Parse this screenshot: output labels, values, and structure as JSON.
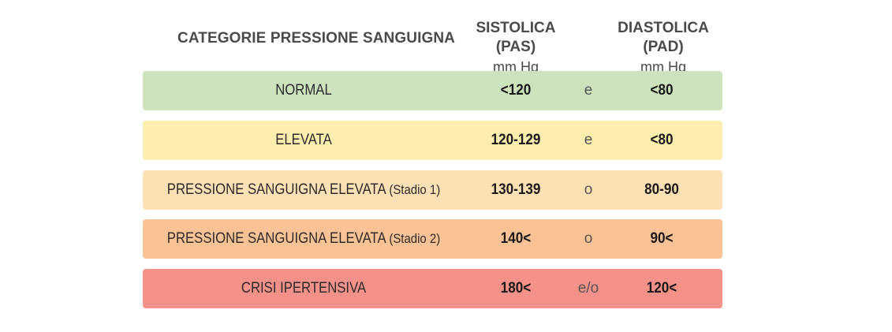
{
  "header": {
    "category": "CATEGORIE PRESSIONE SANGUIGNA",
    "systolic_title": "SISTOLICA (PAS)",
    "systolic_unit": "mm Hg",
    "diastolic_title": "DIASTOLICA (PAD)",
    "diastolic_unit": "mm Hg"
  },
  "rows": [
    {
      "category": "NORMAL",
      "stage": "",
      "systolic": "<120",
      "connector": "e",
      "diastolic": "<80",
      "color": "#cde3bd"
    },
    {
      "category": "ELEVATA",
      "stage": "",
      "systolic": "120-129",
      "connector": "e",
      "diastolic": "<80",
      "color": "#fdeeaf"
    },
    {
      "category": "PRESSIONE SANGUIGNA ELEVATA",
      "stage": "(Stadio 1)",
      "systolic": "130-139",
      "connector": "o",
      "diastolic": "80-90",
      "color": "#fde0b3"
    },
    {
      "category": "PRESSIONE SANGUIGNA ELEVATA",
      "stage": "(Stadio 2)",
      "systolic": "140<",
      "connector": "o",
      "diastolic": "90<",
      "color": "#fbc295"
    },
    {
      "category": "CRISI IPERTENSIVA",
      "stage": "",
      "systolic": "180<",
      "connector": "e/o",
      "diastolic": "120<",
      "color": "#f4928a"
    }
  ]
}
